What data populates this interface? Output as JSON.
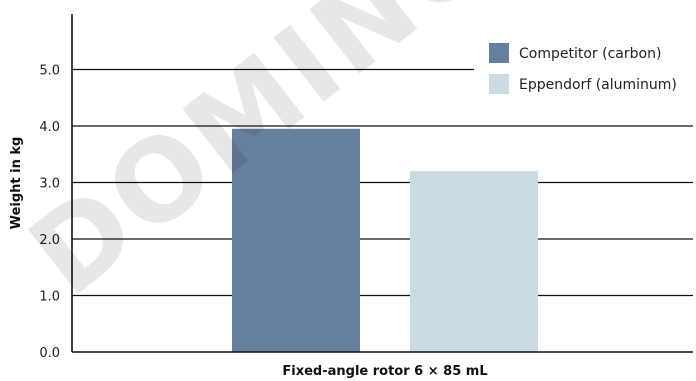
{
  "chart_data": {
    "type": "bar",
    "title": "",
    "xlabel": "Fixed-angle rotor 6 × 85 mL",
    "ylabel": "Weight in kg",
    "ylim": [
      0,
      6
    ],
    "yticks": [
      "0.0",
      "1.0",
      "2.0",
      "3.0",
      "4.0",
      "5.0"
    ],
    "grid": true,
    "legend_position": "top-right",
    "categories": [
      "Fixed-angle rotor 6 × 85 mL"
    ],
    "series": [
      {
        "name": "Competitor (carbon)",
        "values": [
          3.95
        ],
        "color": "#677f9e"
      },
      {
        "name": "Eppendorf (aluminum)",
        "values": [
          3.2
        ],
        "color": "#ccdbe2"
      }
    ]
  },
  "watermark": "DOMINO"
}
